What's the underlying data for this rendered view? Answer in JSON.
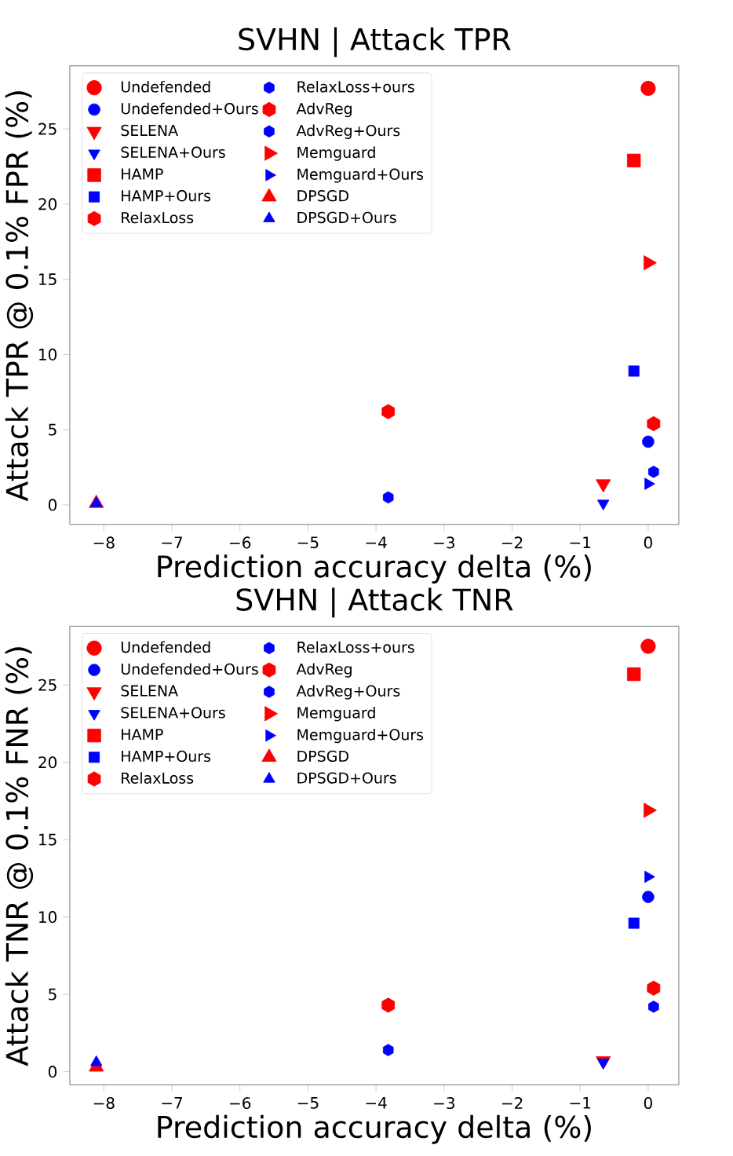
{
  "chart_data": [
    {
      "type": "scatter",
      "title": "SVHN | Attack TPR",
      "xlabel": "Prediction accuracy delta (%)",
      "ylabel": "Attack TPR @ 0.1% FPR (%)",
      "xlim": [
        -8.5,
        0.45
      ],
      "ylim": [
        -1.3,
        29.2
      ],
      "xticks": [
        {
          "value": -8,
          "label": "−8"
        },
        {
          "value": -7,
          "label": "−7"
        },
        {
          "value": -6,
          "label": "−6"
        },
        {
          "value": -5,
          "label": "−5"
        },
        {
          "value": -4,
          "label": "−4"
        },
        {
          "value": -3,
          "label": "−3"
        },
        {
          "value": -2,
          "label": "−2"
        },
        {
          "value": -1,
          "label": "−1"
        },
        0
      ],
      "yticks": [
        0,
        5,
        10,
        15,
        20,
        25
      ],
      "legend": "top left",
      "series": [
        {
          "name": "Undefended",
          "color": "#ff0000",
          "marker": "circle",
          "x": [
            0.0
          ],
          "values": [
            27.7
          ]
        },
        {
          "name": "Undefended+Ours",
          "color": "#0000ff",
          "marker": "circle",
          "x": [
            0.0
          ],
          "values": [
            4.2
          ]
        },
        {
          "name": "SELENA",
          "color": "#ff0000",
          "marker": "triangle-down",
          "x": [
            -0.66
          ],
          "values": [
            1.4
          ]
        },
        {
          "name": "SELENA+Ours",
          "color": "#0000ff",
          "marker": "triangle-down",
          "x": [
            -0.66
          ],
          "values": [
            0.1
          ]
        },
        {
          "name": "HAMP",
          "color": "#ff0000",
          "marker": "square",
          "x": [
            -0.21
          ],
          "values": [
            22.9
          ]
        },
        {
          "name": "HAMP+Ours",
          "color": "#0000ff",
          "marker": "square",
          "x": [
            -0.21
          ],
          "values": [
            8.9
          ]
        },
        {
          "name": "RelaxLoss",
          "color": "#ff0000",
          "x": [
            -3.82
          ],
          "values": [
            6.2
          ]
        },
        {
          "name": "RelaxLoss+ours",
          "color": "#0000ff",
          "x": [
            -3.82
          ],
          "values": [
            0.5
          ]
        },
        {
          "name": "AdvReg",
          "color": "#ff0000",
          "x": [
            0.08
          ],
          "values": [
            5.4
          ]
        },
        {
          "name": "AdvReg+Ours",
          "color": "#0000ff",
          "x": [
            0.08
          ],
          "values": [
            2.2
          ]
        },
        {
          "name": "Memguard",
          "color": "#ff0000",
          "marker": "triangle-right",
          "x": [
            0.0
          ],
          "values": [
            16.1
          ]
        },
        {
          "name": "Memguard+Ours",
          "color": "#0000ff",
          "marker": "triangle-right",
          "x": [
            0.0
          ],
          "values": [
            1.4
          ]
        },
        {
          "name": "DPSGD",
          "color": "#ff0000",
          "marker": "triangle",
          "x": [
            -8.11
          ],
          "values": [
            0.1
          ]
        },
        {
          "name": "DPSGD+Ours",
          "color": "#0000ff",
          "marker": "triangle",
          "x": [
            -8.11
          ],
          "values": [
            0.1
          ]
        }
      ]
    },
    {
      "type": "scatter",
      "title": "SVHN | Attack TNR",
      "xlabel": "Prediction accuracy delta (%)",
      "ylabel": "Attack TNR @ 0.1% FNR (%)",
      "xlim": [
        -8.5,
        0.45
      ],
      "ylim": [
        -0.85,
        28.8
      ],
      "xticks": [
        {
          "value": -8,
          "label": "−8"
        },
        {
          "value": -7,
          "label": "−7"
        },
        {
          "value": -6,
          "label": "−6"
        },
        {
          "value": -5,
          "label": "−5"
        },
        {
          "value": -4,
          "label": "−4"
        },
        {
          "value": -3,
          "label": "−3"
        },
        {
          "value": -2,
          "label": "−2"
        },
        {
          "value": -1,
          "label": "−1"
        },
        0
      ],
      "yticks": [
        0,
        5,
        10,
        15,
        20,
        25
      ],
      "legend": "top left",
      "series": [
        {
          "name": "Undefended",
          "color": "#ff0000",
          "marker": "circle",
          "x": [
            0.0
          ],
          "values": [
            27.5
          ]
        },
        {
          "name": "Undefended+Ours",
          "color": "#0000ff",
          "marker": "circle",
          "x": [
            0.0
          ],
          "values": [
            11.3
          ]
        },
        {
          "name": "SELENA",
          "color": "#ff0000",
          "marker": "triangle-down",
          "x": [
            -0.66
          ],
          "values": [
            0.7
          ]
        },
        {
          "name": "SELENA+Ours",
          "color": "#0000ff",
          "marker": "triangle-down",
          "x": [
            -0.66
          ],
          "values": [
            0.6
          ]
        },
        {
          "name": "HAMP",
          "color": "#ff0000",
          "marker": "square",
          "x": [
            -0.21
          ],
          "values": [
            25.7
          ]
        },
        {
          "name": "HAMP+Ours",
          "color": "#0000ff",
          "marker": "square",
          "x": [
            -0.21
          ],
          "values": [
            9.6
          ]
        },
        {
          "name": "RelaxLoss",
          "color": "#ff0000",
          "x": [
            -3.82
          ],
          "values": [
            4.3
          ]
        },
        {
          "name": "RelaxLoss+ours",
          "color": "#0000ff",
          "x": [
            -3.82
          ],
          "values": [
            1.4
          ]
        },
        {
          "name": "AdvReg",
          "color": "#ff0000",
          "x": [
            0.08
          ],
          "values": [
            5.4
          ]
        },
        {
          "name": "AdvReg+Ours",
          "color": "#0000ff",
          "x": [
            0.08
          ],
          "values": [
            4.2
          ]
        },
        {
          "name": "Memguard",
          "color": "#ff0000",
          "marker": "triangle-right",
          "x": [
            0.0
          ],
          "values": [
            16.9
          ]
        },
        {
          "name": "Memguard+Ours",
          "color": "#0000ff",
          "marker": "triangle-right",
          "x": [
            0.0
          ],
          "values": [
            12.6
          ]
        },
        {
          "name": "DPSGD",
          "color": "#ff0000",
          "marker": "triangle",
          "x": [
            -8.11
          ],
          "values": [
            0.3
          ]
        },
        {
          "name": "DPSGD+Ours",
          "color": "#0000ff",
          "marker": "triangle",
          "x": [
            -8.11
          ],
          "values": [
            0.6
          ]
        }
      ]
    }
  ]
}
